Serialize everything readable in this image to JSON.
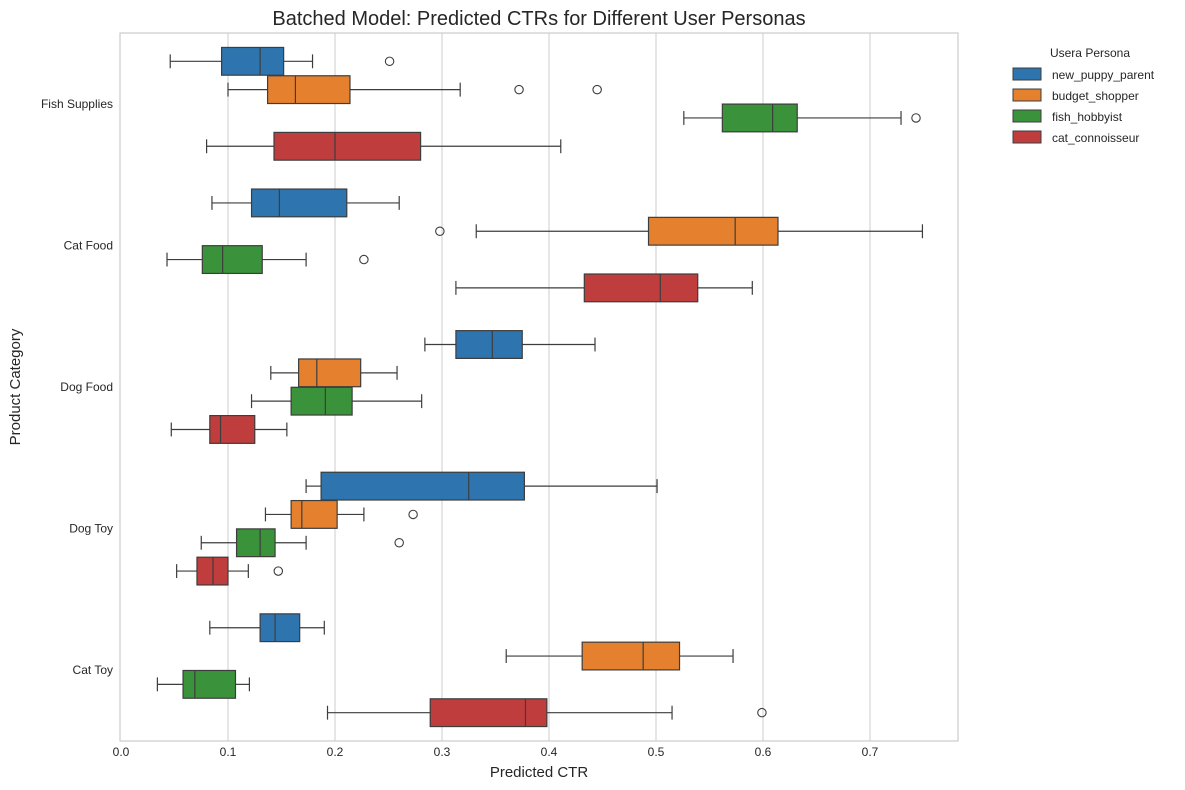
{
  "chart_data": {
    "type": "boxplot",
    "orientation": "horizontal",
    "title": "Batched Model: Predicted CTRs for Different User Personas",
    "xlabel": "Predicted CTR",
    "ylabel": "Product Category",
    "xlim": [
      0.0,
      0.785
    ],
    "xticks": [
      0.0,
      0.1,
      0.2,
      0.3,
      0.4,
      0.5,
      0.6,
      0.7
    ],
    "xtick_labels": [
      "0.0",
      "0.1",
      "0.2",
      "0.3",
      "0.4",
      "0.5",
      "0.6",
      "0.7"
    ],
    "grid": "x",
    "categories": [
      "Fish Supplies",
      "Cat Food",
      "Dog Food",
      "Dog Toy",
      "Cat Toy"
    ],
    "legend": {
      "title": "Usera Persona",
      "placement": "outside upper right"
    },
    "series": [
      {
        "name": "new_puppy_parent",
        "color": "#2e75b0",
        "boxes": [
          {
            "category": "Fish Supplies",
            "whislo": 0.046,
            "q1": 0.094,
            "med": 0.13,
            "q3": 0.152,
            "whishi": 0.179,
            "fliers": [
              0.251
            ]
          },
          {
            "category": "Cat Food",
            "whislo": 0.085,
            "q1": 0.122,
            "med": 0.148,
            "q3": 0.211,
            "whishi": 0.26,
            "fliers": []
          },
          {
            "category": "Dog Food",
            "whislo": 0.284,
            "q1": 0.313,
            "med": 0.347,
            "q3": 0.375,
            "whishi": 0.443,
            "fliers": []
          },
          {
            "category": "Dog Toy",
            "whislo": 0.173,
            "q1": 0.187,
            "med": 0.325,
            "q3": 0.377,
            "whishi": 0.501,
            "fliers": []
          },
          {
            "category": "Cat Toy",
            "whislo": 0.083,
            "q1": 0.13,
            "med": 0.144,
            "q3": 0.167,
            "whishi": 0.19,
            "fliers": []
          }
        ]
      },
      {
        "name": "budget_shopper",
        "color": "#e5812e",
        "boxes": [
          {
            "category": "Fish Supplies",
            "whislo": 0.1,
            "q1": 0.137,
            "med": 0.163,
            "q3": 0.214,
            "whishi": 0.317,
            "fliers": [
              0.372,
              0.445
            ]
          },
          {
            "category": "Cat Food",
            "whislo": 0.332,
            "q1": 0.493,
            "med": 0.574,
            "q3": 0.614,
            "whishi": 0.749,
            "fliers": [
              0.298
            ]
          },
          {
            "category": "Dog Food",
            "whislo": 0.14,
            "q1": 0.166,
            "med": 0.183,
            "q3": 0.224,
            "whishi": 0.258,
            "fliers": []
          },
          {
            "category": "Dog Toy",
            "whislo": 0.135,
            "q1": 0.159,
            "med": 0.169,
            "q3": 0.202,
            "whishi": 0.227,
            "fliers": [
              0.273
            ]
          },
          {
            "category": "Cat Toy",
            "whislo": 0.36,
            "q1": 0.431,
            "med": 0.488,
            "q3": 0.522,
            "whishi": 0.572,
            "fliers": []
          }
        ]
      },
      {
        "name": "fish_hobbyist",
        "color": "#3a923a",
        "boxes": [
          {
            "category": "Fish Supplies",
            "whislo": 0.526,
            "q1": 0.562,
            "med": 0.609,
            "q3": 0.632,
            "whishi": 0.729,
            "fliers": [
              0.743
            ]
          },
          {
            "category": "Cat Food",
            "whislo": 0.043,
            "q1": 0.076,
            "med": 0.095,
            "q3": 0.132,
            "whishi": 0.173,
            "fliers": [
              0.227
            ]
          },
          {
            "category": "Dog Food",
            "whislo": 0.122,
            "q1": 0.159,
            "med": 0.191,
            "q3": 0.216,
            "whishi": 0.281,
            "fliers": []
          },
          {
            "category": "Dog Toy",
            "whislo": 0.075,
            "q1": 0.108,
            "med": 0.13,
            "q3": 0.144,
            "whishi": 0.173,
            "fliers": [
              0.26
            ]
          },
          {
            "category": "Cat Toy",
            "whislo": 0.034,
            "q1": 0.058,
            "med": 0.069,
            "q3": 0.107,
            "whishi": 0.12,
            "fliers": []
          }
        ]
      },
      {
        "name": "cat_connoisseur",
        "color": "#c03d3e",
        "boxes": [
          {
            "category": "Fish Supplies",
            "whislo": 0.08,
            "q1": 0.143,
            "med": 0.2,
            "q3": 0.28,
            "whishi": 0.411,
            "fliers": []
          },
          {
            "category": "Cat Food",
            "whislo": 0.313,
            "q1": 0.433,
            "med": 0.504,
            "q3": 0.539,
            "whishi": 0.59,
            "fliers": []
          },
          {
            "category": "Dog Food",
            "whislo": 0.047,
            "q1": 0.083,
            "med": 0.093,
            "q3": 0.125,
            "whishi": 0.155,
            "fliers": []
          },
          {
            "category": "Dog Toy",
            "whislo": 0.052,
            "q1": 0.071,
            "med": 0.086,
            "q3": 0.1,
            "whishi": 0.119,
            "fliers": [
              0.147
            ]
          },
          {
            "category": "Cat Toy",
            "whislo": 0.193,
            "q1": 0.289,
            "med": 0.378,
            "q3": 0.398,
            "whishi": 0.515,
            "fliers": [
              0.599
            ]
          }
        ]
      }
    ]
  }
}
